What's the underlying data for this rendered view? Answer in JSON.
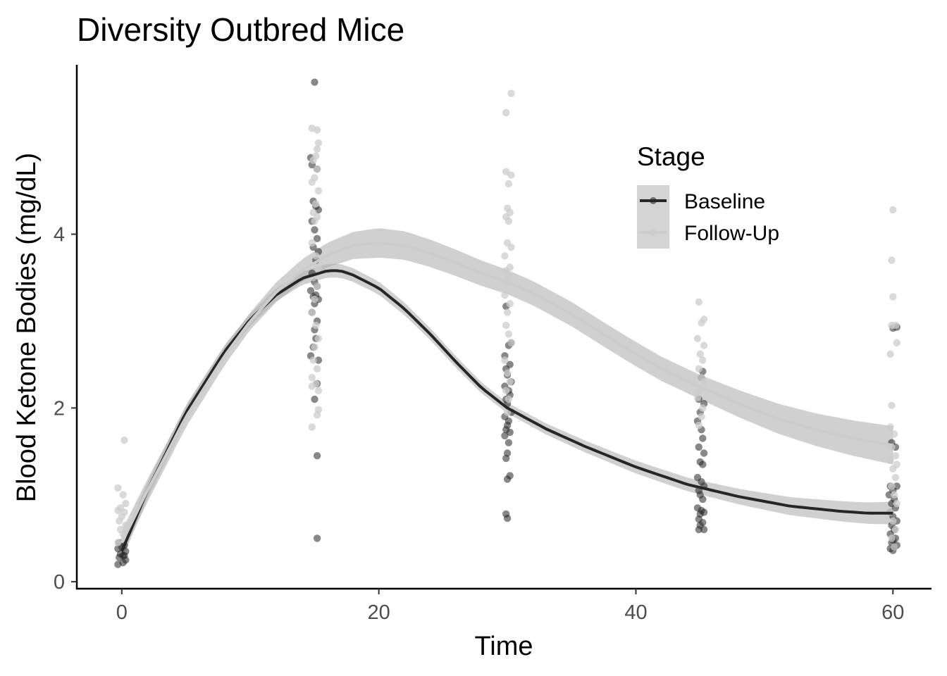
{
  "chart_data": {
    "type": "scatter",
    "title": "Diversity Outbred Mice",
    "xlabel": "Time",
    "ylabel": "Blood Ketone Bodies (mg/dL)",
    "xlim": [
      -3.5,
      63
    ],
    "ylim": [
      -0.08,
      5.95
    ],
    "x_ticks": [
      0,
      20,
      40,
      60
    ],
    "y_ticks": [
      0,
      2,
      4
    ],
    "grid": false,
    "legend": {
      "title": "Stage",
      "position": "top-right",
      "entries": [
        "Baseline",
        "Follow-Up"
      ]
    },
    "colors": {
      "baseline": "#262626",
      "follow_up": "#cccccc",
      "ribbon": "#b3b3b3"
    },
    "series": [
      {
        "name": "Baseline",
        "points": [
          [
            -0.3,
            0.2
          ],
          [
            0.1,
            0.22
          ],
          [
            0.3,
            0.25
          ],
          [
            -0.2,
            0.28
          ],
          [
            0.2,
            0.3
          ],
          [
            -0.1,
            0.32
          ],
          [
            0.3,
            0.35
          ],
          [
            -0.3,
            0.38
          ],
          [
            0.0,
            0.4
          ],
          [
            0.2,
            0.42
          ],
          [
            -0.2,
            0.45
          ],
          [
            0.1,
            0.3
          ],
          [
            15.0,
            5.75
          ],
          [
            14.7,
            4.88
          ],
          [
            14.8,
            4.8
          ],
          [
            15.2,
            4.75
          ],
          [
            14.9,
            4.38
          ],
          [
            15.1,
            4.32
          ],
          [
            15.3,
            4.28
          ],
          [
            14.8,
            4.15
          ],
          [
            15.0,
            4.05
          ],
          [
            15.2,
            3.95
          ],
          [
            14.9,
            3.85
          ],
          [
            15.3,
            3.8
          ],
          [
            15.1,
            3.7
          ],
          [
            14.8,
            3.55
          ],
          [
            15.0,
            3.45
          ],
          [
            15.2,
            3.4
          ],
          [
            14.7,
            3.35
          ],
          [
            15.1,
            3.3
          ],
          [
            14.9,
            3.28
          ],
          [
            15.3,
            3.25
          ],
          [
            15.0,
            3.2
          ],
          [
            14.8,
            3.1
          ],
          [
            15.2,
            3.0
          ],
          [
            15.0,
            2.9
          ],
          [
            15.1,
            2.8
          ],
          [
            14.9,
            2.7
          ],
          [
            14.7,
            2.6
          ],
          [
            15.3,
            2.55
          ],
          [
            15.2,
            2.28
          ],
          [
            15.0,
            2.1
          ],
          [
            15.2,
            1.45
          ],
          [
            15.2,
            0.5
          ],
          [
            29.9,
            3.17
          ],
          [
            30.3,
            2.75
          ],
          [
            30.1,
            2.72
          ],
          [
            29.8,
            2.6
          ],
          [
            30.2,
            2.5
          ],
          [
            29.9,
            2.45
          ],
          [
            30.0,
            2.38
          ],
          [
            30.3,
            2.3
          ],
          [
            29.8,
            2.25
          ],
          [
            30.1,
            2.2
          ],
          [
            30.2,
            2.15
          ],
          [
            29.9,
            2.1
          ],
          [
            30.0,
            2.05
          ],
          [
            30.3,
            1.95
          ],
          [
            29.8,
            1.9
          ],
          [
            30.1,
            1.85
          ],
          [
            30.0,
            1.8
          ],
          [
            29.9,
            1.75
          ],
          [
            30.2,
            1.72
          ],
          [
            29.8,
            1.68
          ],
          [
            30.1,
            1.6
          ],
          [
            30.0,
            1.48
          ],
          [
            29.9,
            1.42
          ],
          [
            30.2,
            1.22
          ],
          [
            30.0,
            1.18
          ],
          [
            29.9,
            0.78
          ],
          [
            30.0,
            0.73
          ],
          [
            45.2,
            2.42
          ],
          [
            45.1,
            2.35
          ],
          [
            44.9,
            2.1
          ],
          [
            45.3,
            2.05
          ],
          [
            45.0,
            1.95
          ],
          [
            44.8,
            1.85
          ],
          [
            45.1,
            1.75
          ],
          [
            45.2,
            1.65
          ],
          [
            44.9,
            1.55
          ],
          [
            45.3,
            1.48
          ],
          [
            45.0,
            1.38
          ],
          [
            45.2,
            1.35
          ],
          [
            44.8,
            1.2
          ],
          [
            45.1,
            1.15
          ],
          [
            45.3,
            1.1
          ],
          [
            44.9,
            1.05
          ],
          [
            45.0,
            1.0
          ],
          [
            45.2,
            0.95
          ],
          [
            44.8,
            0.85
          ],
          [
            45.1,
            0.82
          ],
          [
            45.3,
            0.8
          ],
          [
            45.0,
            0.78
          ],
          [
            44.9,
            0.72
          ],
          [
            45.2,
            0.68
          ],
          [
            45.0,
            0.65
          ],
          [
            44.9,
            0.6
          ],
          [
            45.3,
            0.6
          ],
          [
            60.3,
            2.93
          ],
          [
            60.0,
            2.92
          ],
          [
            59.9,
            1.6
          ],
          [
            60.2,
            1.55
          ],
          [
            59.8,
            1.1
          ],
          [
            60.3,
            1.1
          ],
          [
            60.0,
            1.05
          ],
          [
            59.7,
            1.0
          ],
          [
            60.1,
            0.95
          ],
          [
            59.9,
            0.9
          ],
          [
            60.2,
            0.85
          ],
          [
            59.8,
            0.8
          ],
          [
            60.0,
            0.75
          ],
          [
            60.3,
            0.7
          ],
          [
            59.9,
            0.65
          ],
          [
            60.1,
            0.6
          ],
          [
            59.8,
            0.55
          ],
          [
            60.2,
            0.5
          ],
          [
            60.0,
            0.48
          ],
          [
            59.9,
            0.45
          ],
          [
            60.3,
            0.42
          ],
          [
            60.1,
            0.4
          ],
          [
            59.8,
            0.38
          ],
          [
            60.0,
            0.36
          ]
        ],
        "fit": [
          [
            0,
            0.35
          ],
          [
            2,
            1.05
          ],
          [
            5,
            1.95
          ],
          [
            8,
            2.65
          ],
          [
            10,
            3.02
          ],
          [
            12,
            3.3
          ],
          [
            14,
            3.49
          ],
          [
            16,
            3.58
          ],
          [
            17,
            3.58
          ],
          [
            18,
            3.53
          ],
          [
            20,
            3.38
          ],
          [
            22,
            3.14
          ],
          [
            24,
            2.85
          ],
          [
            26,
            2.53
          ],
          [
            28,
            2.23
          ],
          [
            30,
            2.0
          ],
          [
            33,
            1.76
          ],
          [
            36,
            1.56
          ],
          [
            40,
            1.32
          ],
          [
            44,
            1.12
          ],
          [
            48,
            0.98
          ],
          [
            52,
            0.87
          ],
          [
            56,
            0.81
          ],
          [
            58,
            0.79
          ],
          [
            60,
            0.79
          ]
        ],
        "band_halfwidth": [
          [
            0,
            0.1
          ],
          [
            10,
            0.07
          ],
          [
            17,
            0.08
          ],
          [
            30,
            0.06
          ],
          [
            45,
            0.08
          ],
          [
            60,
            0.13
          ]
        ]
      },
      {
        "name": "Follow-Up",
        "points": [
          [
            0.2,
            1.63
          ],
          [
            -0.3,
            1.08
          ],
          [
            0.1,
            1.0
          ],
          [
            0.3,
            0.9
          ],
          [
            -0.1,
            0.85
          ],
          [
            -0.3,
            0.82
          ],
          [
            0.2,
            0.8
          ],
          [
            0.0,
            0.75
          ],
          [
            -0.2,
            0.7
          ],
          [
            0.3,
            0.65
          ],
          [
            -0.1,
            0.6
          ],
          [
            0.1,
            0.55
          ],
          [
            0.2,
            0.5
          ],
          [
            -0.3,
            0.45
          ],
          [
            14.8,
            5.22
          ],
          [
            15.2,
            5.2
          ],
          [
            15.3,
            5.05
          ],
          [
            15.2,
            4.98
          ],
          [
            15.1,
            4.9
          ],
          [
            14.9,
            4.85
          ],
          [
            15.2,
            4.75
          ],
          [
            15.0,
            4.65
          ],
          [
            14.8,
            4.6
          ],
          [
            15.3,
            4.5
          ],
          [
            15.1,
            4.35
          ],
          [
            14.9,
            4.25
          ],
          [
            15.2,
            4.2
          ],
          [
            15.0,
            4.15
          ],
          [
            14.8,
            3.9
          ],
          [
            15.1,
            3.75
          ],
          [
            15.3,
            3.6
          ],
          [
            14.9,
            3.5
          ],
          [
            15.2,
            3.4
          ],
          [
            15.0,
            3.25
          ],
          [
            14.8,
            3.1
          ],
          [
            15.1,
            2.95
          ],
          [
            15.3,
            2.8
          ],
          [
            15.0,
            2.7
          ],
          [
            14.9,
            2.55
          ],
          [
            15.2,
            2.45
          ],
          [
            14.8,
            2.35
          ],
          [
            15.1,
            2.28
          ],
          [
            15.3,
            2.2
          ],
          [
            14.8,
            2.25
          ],
          [
            15.3,
            1.98
          ],
          [
            15.2,
            1.92
          ],
          [
            14.8,
            1.78
          ],
          [
            30.3,
            5.62
          ],
          [
            29.9,
            5.4
          ],
          [
            29.9,
            4.72
          ],
          [
            30.3,
            4.68
          ],
          [
            30.1,
            4.58
          ],
          [
            30.0,
            4.3
          ],
          [
            30.2,
            4.25
          ],
          [
            29.9,
            4.2
          ],
          [
            30.1,
            4.15
          ],
          [
            30.0,
            3.9
          ],
          [
            30.3,
            3.85
          ],
          [
            29.8,
            3.75
          ],
          [
            30.2,
            3.62
          ],
          [
            29.9,
            3.58
          ],
          [
            30.1,
            3.52
          ],
          [
            30.0,
            3.45
          ],
          [
            29.8,
            3.3
          ],
          [
            30.2,
            3.2
          ],
          [
            30.0,
            3.1
          ],
          [
            29.9,
            2.95
          ],
          [
            30.1,
            2.85
          ],
          [
            30.3,
            2.75
          ],
          [
            29.8,
            2.55
          ],
          [
            30.0,
            2.4
          ],
          [
            30.2,
            2.3
          ],
          [
            29.9,
            2.2
          ],
          [
            30.1,
            2.1
          ],
          [
            30.0,
            1.95
          ],
          [
            44.9,
            3.22
          ],
          [
            45.3,
            3.02
          ],
          [
            45.1,
            2.98
          ],
          [
            44.8,
            2.8
          ],
          [
            45.3,
            2.72
          ],
          [
            45.0,
            2.62
          ],
          [
            45.2,
            2.55
          ],
          [
            44.9,
            2.45
          ],
          [
            45.1,
            2.35
          ],
          [
            45.3,
            2.3
          ],
          [
            45.0,
            2.2
          ],
          [
            44.8,
            2.12
          ],
          [
            45.2,
            2.0
          ],
          [
            45.1,
            1.9
          ],
          [
            44.9,
            1.8
          ],
          [
            60.0,
            4.28
          ],
          [
            59.9,
            3.7
          ],
          [
            60.0,
            3.28
          ],
          [
            59.9,
            2.95
          ],
          [
            60.2,
            2.95
          ],
          [
            60.3,
            2.75
          ],
          [
            59.8,
            2.62
          ],
          [
            59.9,
            2.03
          ],
          [
            59.8,
            1.78
          ],
          [
            60.1,
            1.7
          ],
          [
            59.9,
            1.55
          ],
          [
            60.2,
            1.45
          ],
          [
            59.8,
            1.4
          ],
          [
            60.3,
            1.35
          ],
          [
            60.0,
            1.3
          ],
          [
            60.2,
            1.2
          ],
          [
            59.9,
            1.1
          ],
          [
            60.1,
            1.0
          ],
          [
            60.3,
            0.9
          ],
          [
            59.8,
            0.8
          ],
          [
            60.0,
            0.7
          ],
          [
            60.2,
            0.6
          ],
          [
            59.9,
            0.5
          ],
          [
            60.1,
            0.4
          ]
        ],
        "fit": [
          [
            0,
            0.45
          ],
          [
            2,
            1.05
          ],
          [
            5,
            1.9
          ],
          [
            8,
            2.6
          ],
          [
            10,
            3.0
          ],
          [
            12,
            3.33
          ],
          [
            14,
            3.58
          ],
          [
            16,
            3.76
          ],
          [
            18,
            3.87
          ],
          [
            20,
            3.9
          ],
          [
            22,
            3.87
          ],
          [
            24,
            3.78
          ],
          [
            26,
            3.67
          ],
          [
            28,
            3.55
          ],
          [
            30,
            3.45
          ],
          [
            32,
            3.32
          ],
          [
            35,
            3.08
          ],
          [
            38,
            2.8
          ],
          [
            40,
            2.62
          ],
          [
            42,
            2.45
          ],
          [
            45,
            2.24
          ],
          [
            48,
            2.05
          ],
          [
            51,
            1.88
          ],
          [
            54,
            1.75
          ],
          [
            57,
            1.65
          ],
          [
            60,
            1.57
          ]
        ],
        "band_halfwidth": [
          [
            0,
            0.14
          ],
          [
            10,
            0.1
          ],
          [
            20,
            0.17
          ],
          [
            30,
            0.14
          ],
          [
            45,
            0.14
          ],
          [
            60,
            0.22
          ]
        ]
      }
    ]
  }
}
